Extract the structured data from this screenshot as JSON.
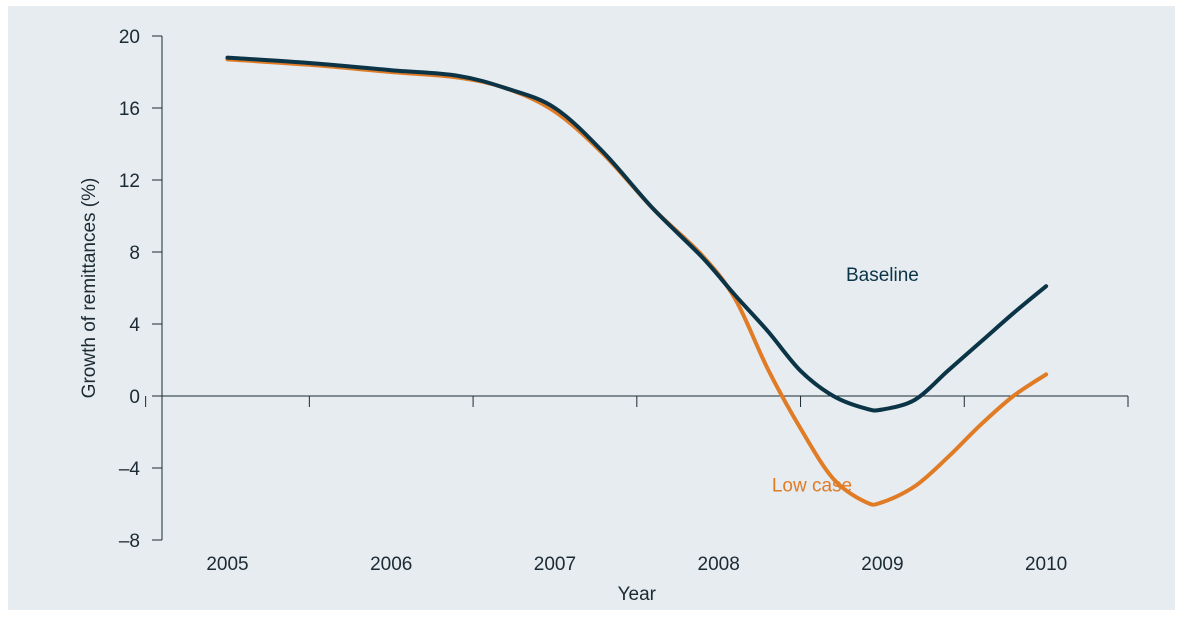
{
  "chart_data": {
    "type": "line",
    "title": "",
    "xlabel": "Year",
    "ylabel": "Growth of remittances (%)",
    "xlim": [
      2004.6,
      2010.5
    ],
    "ylim": [
      -8,
      20
    ],
    "x_ticks": [
      2005,
      2006,
      2007,
      2008,
      2009,
      2010
    ],
    "x_tick_labels": [
      "2005",
      "2006",
      "2007",
      "2008",
      "2009",
      "2010"
    ],
    "y_ticks": [
      -8,
      -4,
      0,
      4,
      8,
      12,
      16,
      20
    ],
    "y_tick_labels": [
      "–8",
      "–4",
      "0",
      "4",
      "8",
      "12",
      "16",
      "20"
    ],
    "grid": false,
    "legend": "inline labels",
    "series": [
      {
        "name": "Baseline",
        "color": "#0b3446",
        "label_at": [
          2009.0,
          6.4
        ],
        "label_anchor": "middle",
        "points": [
          [
            2005,
            18.8
          ],
          [
            2005.5,
            18.5
          ],
          [
            2006,
            18.1
          ],
          [
            2006.4,
            17.8
          ],
          [
            2006.7,
            17.1
          ],
          [
            2007,
            16.0
          ],
          [
            2007.3,
            13.5
          ],
          [
            2007.6,
            10.4
          ],
          [
            2007.9,
            7.7
          ],
          [
            2008.1,
            5.6
          ],
          [
            2008.3,
            3.6
          ],
          [
            2008.5,
            1.4
          ],
          [
            2008.7,
            0.0
          ],
          [
            2008.9,
            -0.7
          ],
          [
            2009.0,
            -0.75
          ],
          [
            2009.2,
            -0.2
          ],
          [
            2009.4,
            1.4
          ],
          [
            2009.6,
            3.0
          ],
          [
            2009.8,
            4.6
          ],
          [
            2010,
            6.1
          ]
        ]
      },
      {
        "name": "Low case",
        "color": "#e07b26",
        "label_at": [
          2008.57,
          -5.3
        ],
        "label_anchor": "middle",
        "points": [
          [
            2005,
            18.7
          ],
          [
            2005.5,
            18.4
          ],
          [
            2006,
            18.0
          ],
          [
            2006.4,
            17.7
          ],
          [
            2006.7,
            17.1
          ],
          [
            2007,
            15.8
          ],
          [
            2007.3,
            13.4
          ],
          [
            2007.6,
            10.4
          ],
          [
            2007.9,
            7.8
          ],
          [
            2008.1,
            5.4
          ],
          [
            2008.3,
            1.5
          ],
          [
            2008.5,
            -1.8
          ],
          [
            2008.7,
            -4.6
          ],
          [
            2008.9,
            -5.9
          ],
          [
            2009.0,
            -5.9
          ],
          [
            2009.2,
            -5.0
          ],
          [
            2009.4,
            -3.4
          ],
          [
            2009.6,
            -1.6
          ],
          [
            2009.8,
            0.0
          ],
          [
            2010,
            1.2
          ]
        ]
      }
    ]
  }
}
